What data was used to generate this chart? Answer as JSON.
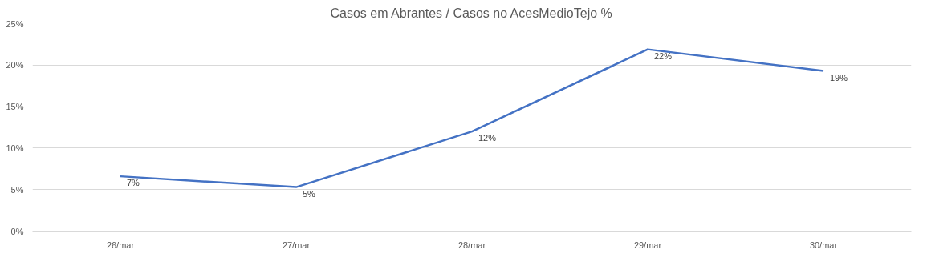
{
  "chart_data": {
    "type": "line",
    "title": "Casos em Abrantes / Casos no AcesMedioTejo %",
    "categories": [
      "26/mar",
      "27/mar",
      "28/mar",
      "29/mar",
      "30/mar"
    ],
    "series": [
      {
        "color": "#4472c4",
        "values": [
          6.6,
          5.3,
          12,
          21.9,
          19.3
        ],
        "value_labels": [
          "7%",
          "5%",
          "12%",
          "22%",
          "19%"
        ]
      }
    ],
    "ylim": [
      0,
      25
    ],
    "yticks": [
      {
        "value": 0,
        "label": "0%"
      },
      {
        "value": 5,
        "label": "5%"
      },
      {
        "value": 10,
        "label": "10%"
      },
      {
        "value": 15,
        "label": "15%"
      },
      {
        "value": 20,
        "label": "20%"
      },
      {
        "value": 25,
        "label": "25%"
      }
    ],
    "grid": "y",
    "marker": "none",
    "line_style": "solid"
  }
}
